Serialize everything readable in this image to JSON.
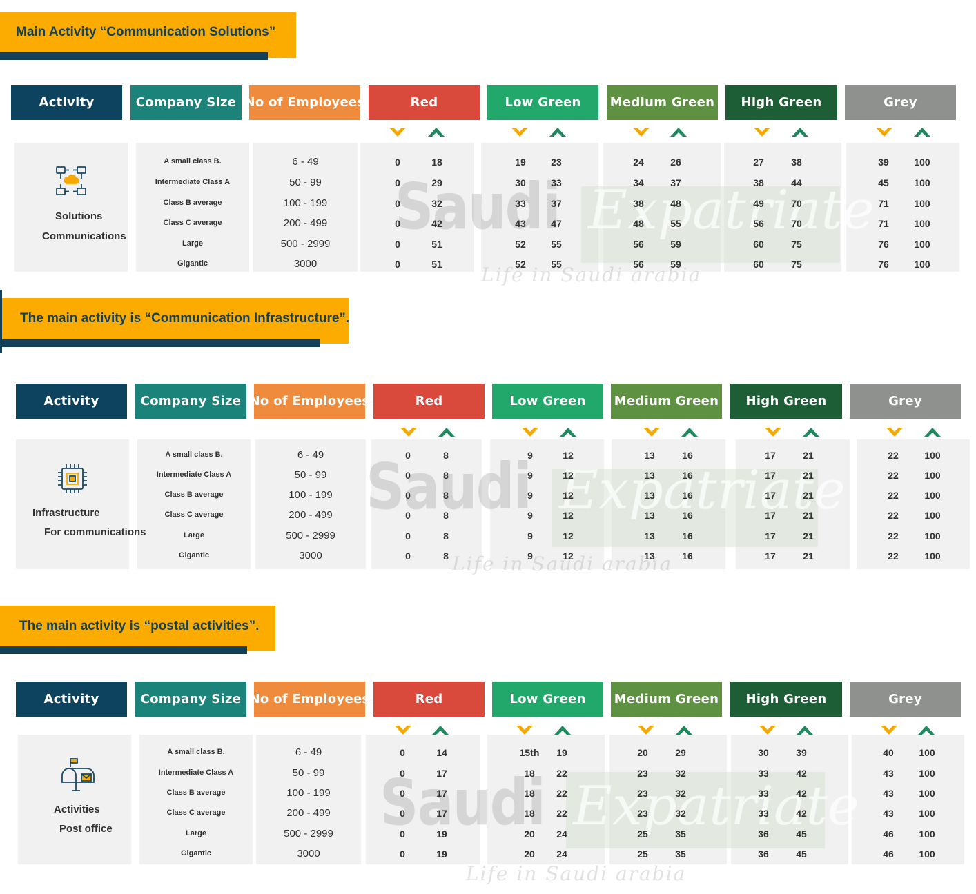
{
  "colors": {
    "banner_bg": "#fcac00",
    "banner_text": "#14415a",
    "activity": "#0e4360",
    "company_size": "#1b837a",
    "employees": "#ee8b3d",
    "red": "#d94a3c",
    "low_green": "#22a86b",
    "medium_green": "#5e9142",
    "high_green": "#1e5e36",
    "grey": "#8f918f"
  },
  "icons": [
    "chevron-down-icon",
    "chevron-up-icon",
    "cloud-network-icon",
    "cpu-chip-icon",
    "mailbox-icon"
  ],
  "headers": {
    "activity": "Activity",
    "company_size": "Company Size",
    "employees": "No of Employees",
    "red": "Red",
    "low_green": "Low Green",
    "medium_green": "Medium Green",
    "high_green": "High Green",
    "grey": "Grey"
  },
  "sizes": [
    "A small class B.",
    "Intermediate Class A",
    "Class B average",
    "Class C average",
    "Large",
    "Gigantic"
  ],
  "employees": [
    "6 - 49",
    "50 - 99",
    "100 - 199",
    "200 - 499",
    "500 - 2999",
    "3000"
  ],
  "watermark": {
    "word1": "Saudi",
    "word2": "Expatriate",
    "tagline": "Life in Saudi arabia"
  },
  "sections": [
    {
      "title": "Main Activity “Communication Solutions”",
      "activity_lines": [
        "Solutions",
        "Communications"
      ],
      "icon": "cloud-network-icon",
      "rows": [
        {
          "red": [
            "0",
            "18"
          ],
          "low_green": [
            "19",
            "23"
          ],
          "medium_green": [
            "24",
            "26"
          ],
          "high_green": [
            "27",
            "38"
          ],
          "grey": [
            "39",
            "100"
          ]
        },
        {
          "red": [
            "0",
            "29"
          ],
          "low_green": [
            "30",
            "33"
          ],
          "medium_green": [
            "34",
            "37"
          ],
          "high_green": [
            "38",
            "44"
          ],
          "grey": [
            "45",
            "100"
          ]
        },
        {
          "red": [
            "0",
            "32"
          ],
          "low_green": [
            "33",
            "37"
          ],
          "medium_green": [
            "38",
            "48"
          ],
          "high_green": [
            "49",
            "70"
          ],
          "grey": [
            "71",
            "100"
          ]
        },
        {
          "red": [
            "0",
            "42"
          ],
          "low_green": [
            "43",
            "47"
          ],
          "medium_green": [
            "48",
            "55"
          ],
          "high_green": [
            "56",
            "70"
          ],
          "grey": [
            "71",
            "100"
          ]
        },
        {
          "red": [
            "0",
            "51"
          ],
          "low_green": [
            "52",
            "55"
          ],
          "medium_green": [
            "56",
            "59"
          ],
          "high_green": [
            "60",
            "75"
          ],
          "grey": [
            "76",
            "100"
          ]
        },
        {
          "red": [
            "0",
            "51"
          ],
          "low_green": [
            "52",
            "55"
          ],
          "medium_green": [
            "56",
            "59"
          ],
          "high_green": [
            "60",
            "75"
          ],
          "grey": [
            "76",
            "100"
          ]
        }
      ]
    },
    {
      "title": "The main activity is “Communication Infrastructure”.",
      "activity_lines": [
        "Infrastructure",
        "For communications"
      ],
      "icon": "cpu-chip-icon",
      "rows": [
        {
          "red": [
            "0",
            "8"
          ],
          "low_green": [
            "9",
            "12"
          ],
          "medium_green": [
            "13",
            "16"
          ],
          "high_green": [
            "17",
            "21"
          ],
          "grey": [
            "22",
            "100"
          ]
        },
        {
          "red": [
            "0",
            "8"
          ],
          "low_green": [
            "9",
            "12"
          ],
          "medium_green": [
            "13",
            "16"
          ],
          "high_green": [
            "17",
            "21"
          ],
          "grey": [
            "22",
            "100"
          ]
        },
        {
          "red": [
            "0",
            "8"
          ],
          "low_green": [
            "9",
            "12"
          ],
          "medium_green": [
            "13",
            "16"
          ],
          "high_green": [
            "17",
            "21"
          ],
          "grey": [
            "22",
            "100"
          ]
        },
        {
          "red": [
            "0",
            "8"
          ],
          "low_green": [
            "9",
            "12"
          ],
          "medium_green": [
            "13",
            "16"
          ],
          "high_green": [
            "17",
            "21"
          ],
          "grey": [
            "22",
            "100"
          ]
        },
        {
          "red": [
            "0",
            "8"
          ],
          "low_green": [
            "9",
            "12"
          ],
          "medium_green": [
            "13",
            "16"
          ],
          "high_green": [
            "17",
            "21"
          ],
          "grey": [
            "22",
            "100"
          ]
        },
        {
          "red": [
            "0",
            "8"
          ],
          "low_green": [
            "9",
            "12"
          ],
          "medium_green": [
            "13",
            "16"
          ],
          "high_green": [
            "17",
            "21"
          ],
          "grey": [
            "22",
            "100"
          ]
        }
      ]
    },
    {
      "title": "The main activity is “postal activities”.",
      "activity_lines": [
        "Activities",
        "Post office"
      ],
      "icon": "mailbox-icon",
      "rows": [
        {
          "red": [
            "0",
            "14"
          ],
          "low_green": [
            "15th",
            "19"
          ],
          "medium_green": [
            "20",
            "29"
          ],
          "high_green": [
            "30",
            "39"
          ],
          "grey": [
            "40",
            "100"
          ]
        },
        {
          "red": [
            "0",
            "17"
          ],
          "low_green": [
            "18",
            "22"
          ],
          "medium_green": [
            "23",
            "32"
          ],
          "high_green": [
            "33",
            "42"
          ],
          "grey": [
            "43",
            "100"
          ]
        },
        {
          "red": [
            "0",
            "17"
          ],
          "low_green": [
            "18",
            "22"
          ],
          "medium_green": [
            "23",
            "32"
          ],
          "high_green": [
            "33",
            "42"
          ],
          "grey": [
            "43",
            "100"
          ]
        },
        {
          "red": [
            "0",
            "17"
          ],
          "low_green": [
            "18",
            "22"
          ],
          "medium_green": [
            "23",
            "32"
          ],
          "high_green": [
            "33",
            "42"
          ],
          "grey": [
            "43",
            "100"
          ]
        },
        {
          "red": [
            "0",
            "19"
          ],
          "low_green": [
            "20",
            "24"
          ],
          "medium_green": [
            "25",
            "35"
          ],
          "high_green": [
            "36",
            "45"
          ],
          "grey": [
            "46",
            "100"
          ]
        },
        {
          "red": [
            "0",
            "19"
          ],
          "low_green": [
            "20",
            "24"
          ],
          "medium_green": [
            "25",
            "35"
          ],
          "high_green": [
            "36",
            "45"
          ],
          "grey": [
            "46",
            "100"
          ]
        }
      ]
    }
  ]
}
